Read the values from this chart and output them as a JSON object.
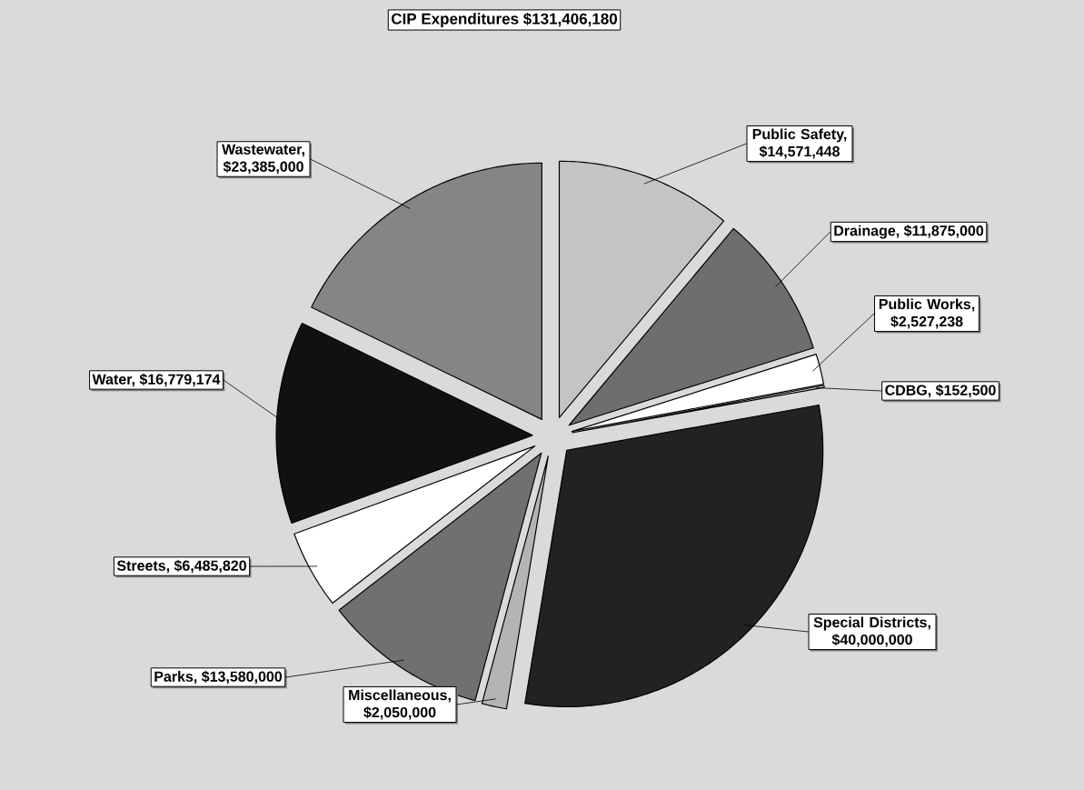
{
  "chart_data": {
    "type": "pie",
    "title": "CIP Expenditures $131,406,180",
    "categories": [
      "Public Safety, $14,571,448",
      "Drainage, $11,875,000",
      "Public Works, $2,527,238",
      "CDBG, $152,500",
      "Special Districts, $40,000,000",
      "Miscellaneous, $2,050,000",
      "Parks, $13,580,000",
      "Streets, $6,485,820",
      "Water, $16,779,174",
      "Wastewater, $23,385,000"
    ],
    "values": [
      14571448,
      11875000,
      2527238,
      152500,
      40000000,
      2050000,
      13580000,
      6485820,
      16779174,
      23385000
    ],
    "colors": [
      "#c4c4c4",
      "#6e6e6e",
      "#ffffff",
      "#f4f4f4",
      "#222222",
      "#b4b4b4",
      "#707070",
      "#ffffff",
      "#111111",
      "#858585"
    ]
  }
}
